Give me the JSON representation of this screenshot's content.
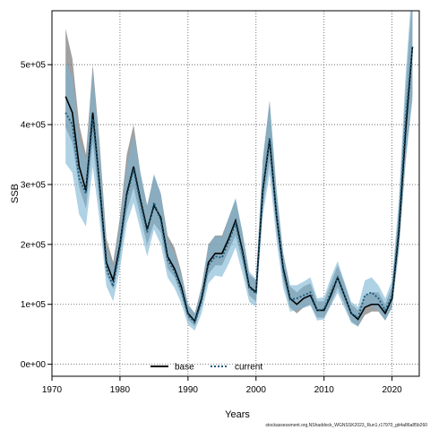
{
  "chart_data": {
    "type": "line",
    "title": "",
    "xlabel": "Years",
    "ylabel": "SSB",
    "xlim": [
      1970,
      2024
    ],
    "ylim": [
      -20000,
      590000
    ],
    "x_ticks": [
      1970,
      1980,
      1990,
      2000,
      2010,
      2020
    ],
    "y_ticks": [
      0,
      100000,
      200000,
      300000,
      400000,
      500000
    ],
    "y_tick_labels": [
      "0e+00",
      "1e+05",
      "2e+05",
      "3e+05",
      "4e+05",
      "5e+05"
    ],
    "grid": true,
    "legend_position": "bottom-center",
    "x": [
      1972,
      1973,
      1974,
      1975,
      1976,
      1977,
      1978,
      1979,
      1980,
      1981,
      1982,
      1983,
      1984,
      1985,
      1986,
      1987,
      1988,
      1989,
      1990,
      1991,
      1992,
      1993,
      1994,
      1995,
      1996,
      1997,
      1998,
      1999,
      2000,
      2001,
      2002,
      2003,
      2004,
      2005,
      2006,
      2007,
      2008,
      2009,
      2010,
      2011,
      2012,
      2013,
      2014,
      2015,
      2016,
      2017,
      2018,
      2019,
      2020,
      2021,
      2022,
      2023
    ],
    "series": [
      {
        "name": "base",
        "color": "#000000",
        "band_color": "#808080",
        "values": [
          447000,
          420000,
          330000,
          290000,
          420000,
          300000,
          170000,
          140000,
          200000,
          285000,
          330000,
          275000,
          225000,
          265000,
          245000,
          180000,
          160000,
          130000,
          85000,
          72000,
          110000,
          170000,
          185000,
          185000,
          210000,
          240000,
          190000,
          130000,
          120000,
          290000,
          375000,
          250000,
          160000,
          110000,
          100000,
          110000,
          115000,
          90000,
          90000,
          115000,
          145000,
          115000,
          85000,
          75000,
          95000,
          100000,
          100000,
          85000,
          110000,
          220000,
          390000,
          530000
        ],
        "lower": [
          395000,
          370000,
          295000,
          260000,
          370000,
          265000,
          150000,
          125000,
          180000,
          255000,
          295000,
          245000,
          200000,
          235000,
          220000,
          160000,
          145000,
          115000,
          75000,
          63000,
          98000,
          150000,
          165000,
          165000,
          190000,
          215000,
          170000,
          115000,
          105000,
          260000,
          340000,
          225000,
          140000,
          95000,
          85000,
          95000,
          100000,
          78000,
          78000,
          100000,
          128000,
          100000,
          72000,
          63000,
          82000,
          88000,
          88000,
          73000,
          95000,
          190000,
          340000,
          450000
        ],
        "upper": [
          560000,
          510000,
          400000,
          350000,
          500000,
          370000,
          210000,
          170000,
          245000,
          350000,
          400000,
          320000,
          265000,
          315000,
          285000,
          215000,
          195000,
          155000,
          100000,
          85000,
          130000,
          200000,
          215000,
          215000,
          245000,
          275000,
          220000,
          150000,
          140000,
          340000,
          440000,
          290000,
          185000,
          130000,
          120000,
          130000,
          135000,
          105000,
          105000,
          135000,
          165000,
          135000,
          100000,
          90000,
          115000,
          120000,
          120000,
          100000,
          130000,
          260000,
          460000,
          620000
        ]
      },
      {
        "name": "current",
        "color": "#1a5a7a",
        "band_color": "#7ab4d4",
        "values": [
          420000,
          400000,
          310000,
          285000,
          410000,
          300000,
          160000,
          130000,
          195000,
          280000,
          325000,
          270000,
          220000,
          270000,
          240000,
          175000,
          155000,
          125000,
          82000,
          70000,
          105000,
          165000,
          180000,
          178000,
          205000,
          235000,
          185000,
          128000,
          118000,
          295000,
          378000,
          250000,
          155000,
          108000,
          110000,
          115000,
          120000,
          90000,
          92000,
          120000,
          145000,
          115000,
          85000,
          78000,
          115000,
          120000,
          110000,
          90000,
          115000,
          230000,
          410000,
          530000
        ],
        "lower": [
          335000,
          320000,
          250000,
          230000,
          330000,
          240000,
          130000,
          105000,
          160000,
          235000,
          270000,
          225000,
          180000,
          225000,
          200000,
          145000,
          128000,
          102000,
          66000,
          56000,
          85000,
          135000,
          148000,
          146000,
          168000,
          195000,
          152000,
          104000,
          96000,
          248000,
          318000,
          208000,
          127000,
          88000,
          90000,
          94000,
          98000,
          73000,
          75000,
          98000,
          119000,
          94000,
          69000,
          63000,
          94000,
          98000,
          90000,
          73000,
          94000,
          190000,
          340000,
          440000
        ],
        "upper": [
          505000,
          480000,
          375000,
          340000,
          490000,
          360000,
          195000,
          160000,
          235000,
          330000,
          385000,
          320000,
          262000,
          318000,
          285000,
          208000,
          185000,
          150000,
          100000,
          85000,
          128000,
          198000,
          215000,
          212000,
          245000,
          278000,
          222000,
          155000,
          142000,
          345000,
          440000,
          295000,
          185000,
          132000,
          132000,
          138000,
          145000,
          110000,
          112000,
          145000,
          172000,
          138000,
          104000,
          96000,
          140000,
          145000,
          132000,
          110000,
          140000,
          275000,
          485000,
          640000
        ]
      }
    ]
  },
  "footer_text": "stockassessment.org,NShaddock_WGNSSK2023_Run1,r17970_git4a86a85b260"
}
